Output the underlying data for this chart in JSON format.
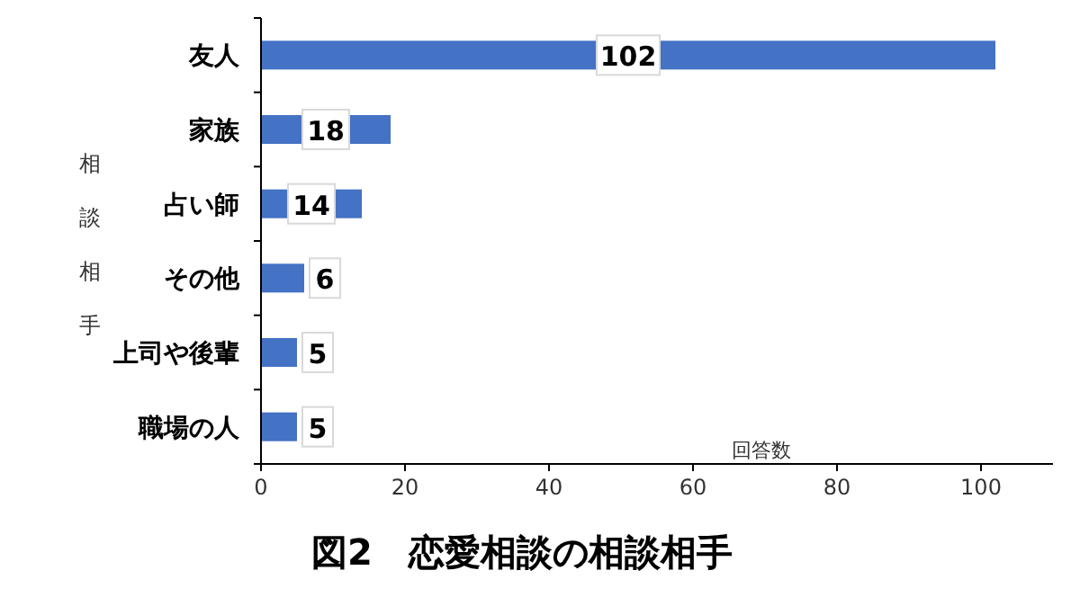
{
  "chart_data": {
    "type": "bar",
    "orientation": "horizontal",
    "title": "図2　恋愛相談の相談相手",
    "xlabel": "回答数",
    "ylabel": "相談相手",
    "categories": [
      "友人",
      "家族",
      "占い師",
      "その他",
      "上司や後輩",
      "職場の人"
    ],
    "values": [
      102,
      18,
      14,
      6,
      5,
      5
    ],
    "color": "#4472c4",
    "data_labels": true,
    "xlim": [
      0,
      110
    ],
    "xticks": [
      0,
      20,
      40,
      60,
      80,
      100
    ],
    "grid": false
  }
}
